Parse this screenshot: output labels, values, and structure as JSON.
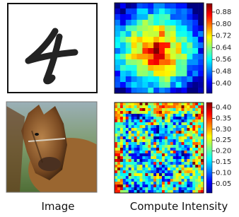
{
  "colorbars": [
    {
      "ticks": [
        "0.88",
        "0.80",
        "0.72",
        "0.64",
        "0.56",
        "0.48",
        "0.40"
      ]
    },
    {
      "ticks": [
        "0.40",
        "0.35",
        "0.30",
        "0.25",
        "0.20",
        "0.15",
        "0.10",
        "0.05"
      ]
    }
  ],
  "captions": [
    "Image",
    "Compute Intensity"
  ]
}
